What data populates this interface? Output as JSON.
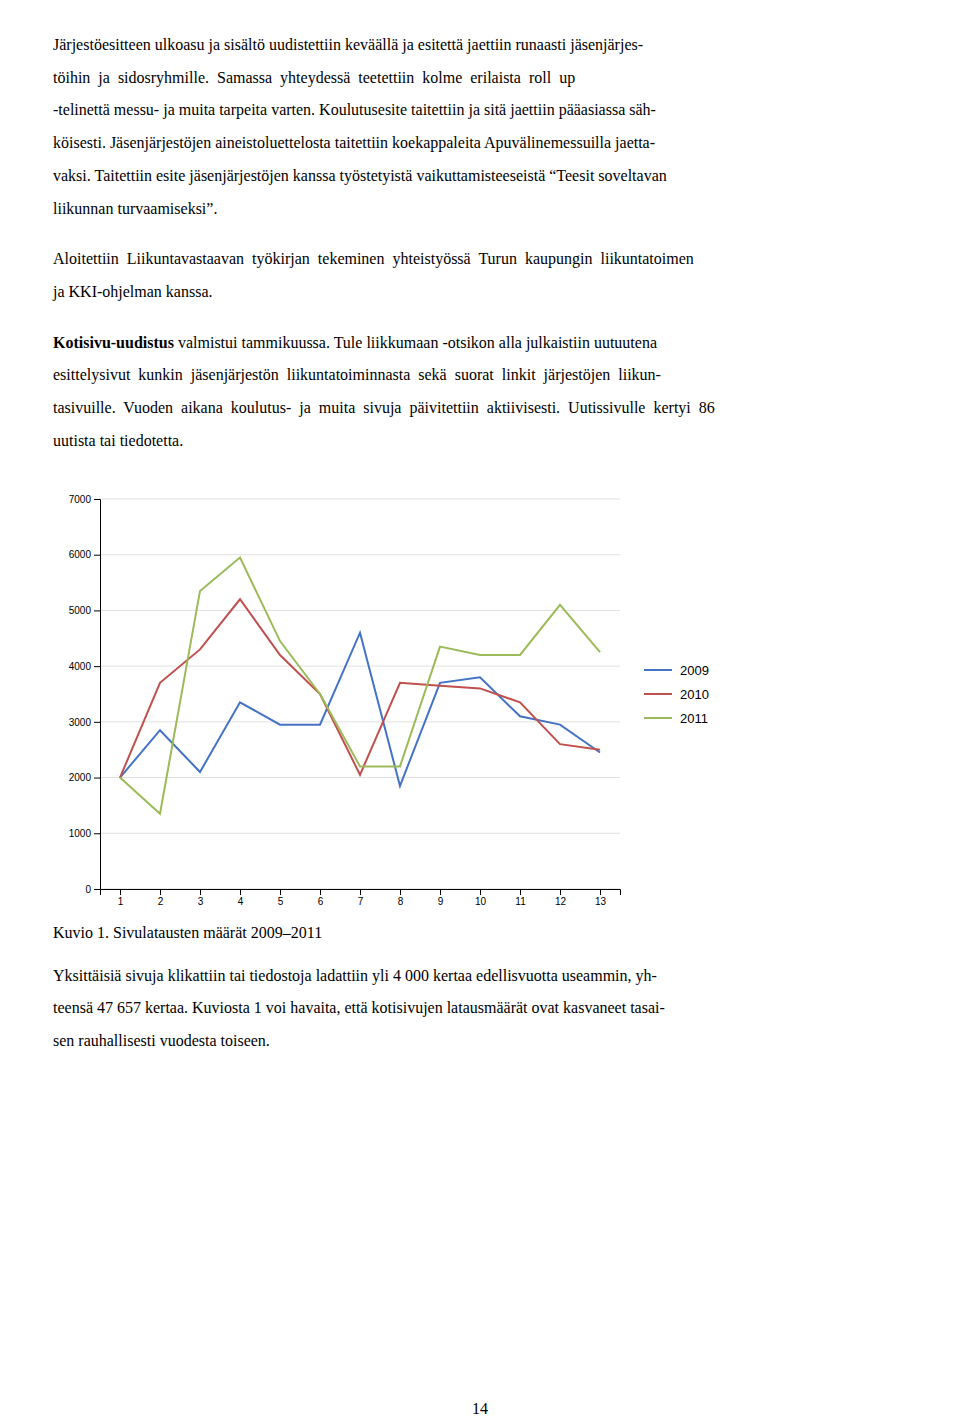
{
  "paragraphs_top": [
    [
      "Järjestöesitteen ulkoasu ja sisältö uudistettiin keväällä ja esitettä jaettiin runaasti jäsenjärjes-",
      "töihin  ja  sidosryhmille.  Samassa  yhteydessä  teetettiin  kolme  erilaista  roll  up",
      "-telinettä messu- ja muita tarpeita varten. Koulutusesite taitettiin ja sitä jaettiin pääasiassa säh-",
      "köisesti. Jäsenjärjestöjen aineistoluettelosta taitettiin koekappaleita Apuvälinemessuilla jaetta-",
      "vaksi. Taitettiin esite jäsenjärjestöjen kanssa työstetyistä vaikuttamisteeseistä “Teesit soveltavan",
      "liikunnan turvaamiseksi”."
    ],
    [
      "Aloitettiin  Liikuntavastaavan  työkirjan  tekeminen  yhteistyössä  Turun  kaupungin  liikuntatoimen",
      "ja KKI-ohjelman kanssa."
    ]
  ],
  "bold_lead": "Kotisivu-uudistus",
  "bold_lead_rest": " valmistui tammikuussa. Tule liikkumaan -otsikon alla julkaistiin uutuutena",
  "paragraph_3": [
    "esittelysivut  kunkin  jäsenjärjestön  liikuntatoiminnasta  sekä  suorat  linkit  järjestöjen  liikun-",
    "tasivuille.  Vuoden  aikana  koulutus-  ja  muita  sivuja  päivitettiin  aktiivisesti.  Uutissivulle  kertyi  86",
    "uutista tai tiedotetta."
  ],
  "chart_data": {
    "type": "line",
    "x": [
      1,
      2,
      3,
      4,
      5,
      6,
      7,
      8,
      9,
      10,
      11,
      12,
      13
    ],
    "series": [
      {
        "name": "2009",
        "color": "#4472C4",
        "values": [
          2000,
          2850,
          2100,
          3350,
          2950,
          2950,
          4600,
          1850,
          3700,
          3800,
          3100,
          2950,
          2450
        ]
      },
      {
        "name": "2010",
        "color": "#C0504D",
        "values": [
          2000,
          3700,
          4300,
          5200,
          4200,
          3500,
          2050,
          3700,
          3650,
          3600,
          3350,
          2600,
          2500
        ]
      },
      {
        "name": "2011",
        "color": "#9BBB59",
        "values": [
          2000,
          1350,
          5350,
          5950,
          4450,
          3500,
          2200,
          2200,
          4350,
          4200,
          4200,
          5100,
          4250
        ]
      }
    ],
    "xlim": [
      0.5,
      13.5
    ],
    "xticks": [
      1,
      2,
      3,
      4,
      5,
      6,
      7,
      8,
      9,
      10,
      11,
      12,
      13
    ],
    "ylim": [
      0,
      7000
    ],
    "yticks": [
      0,
      1000,
      2000,
      3000,
      4000,
      5000,
      6000,
      7000
    ],
    "grid": true,
    "legend": "right"
  },
  "caption": "Kuvio 1. Sivulatausten määrät 2009–2011",
  "paragraphs_bottom": [
    "Yksittäisiä sivuja klikattiin tai tiedostoja ladattiin yli 4 000 kertaa edellisvuotta useammin, yh-",
    "teensä 47 657 kertaa. Kuviosta 1 voi havaita, että kotisivujen latausmäärät ovat kasvaneet tasai-",
    "sen rauhallisesti vuodesta toiseen."
  ],
  "page_number": "14"
}
